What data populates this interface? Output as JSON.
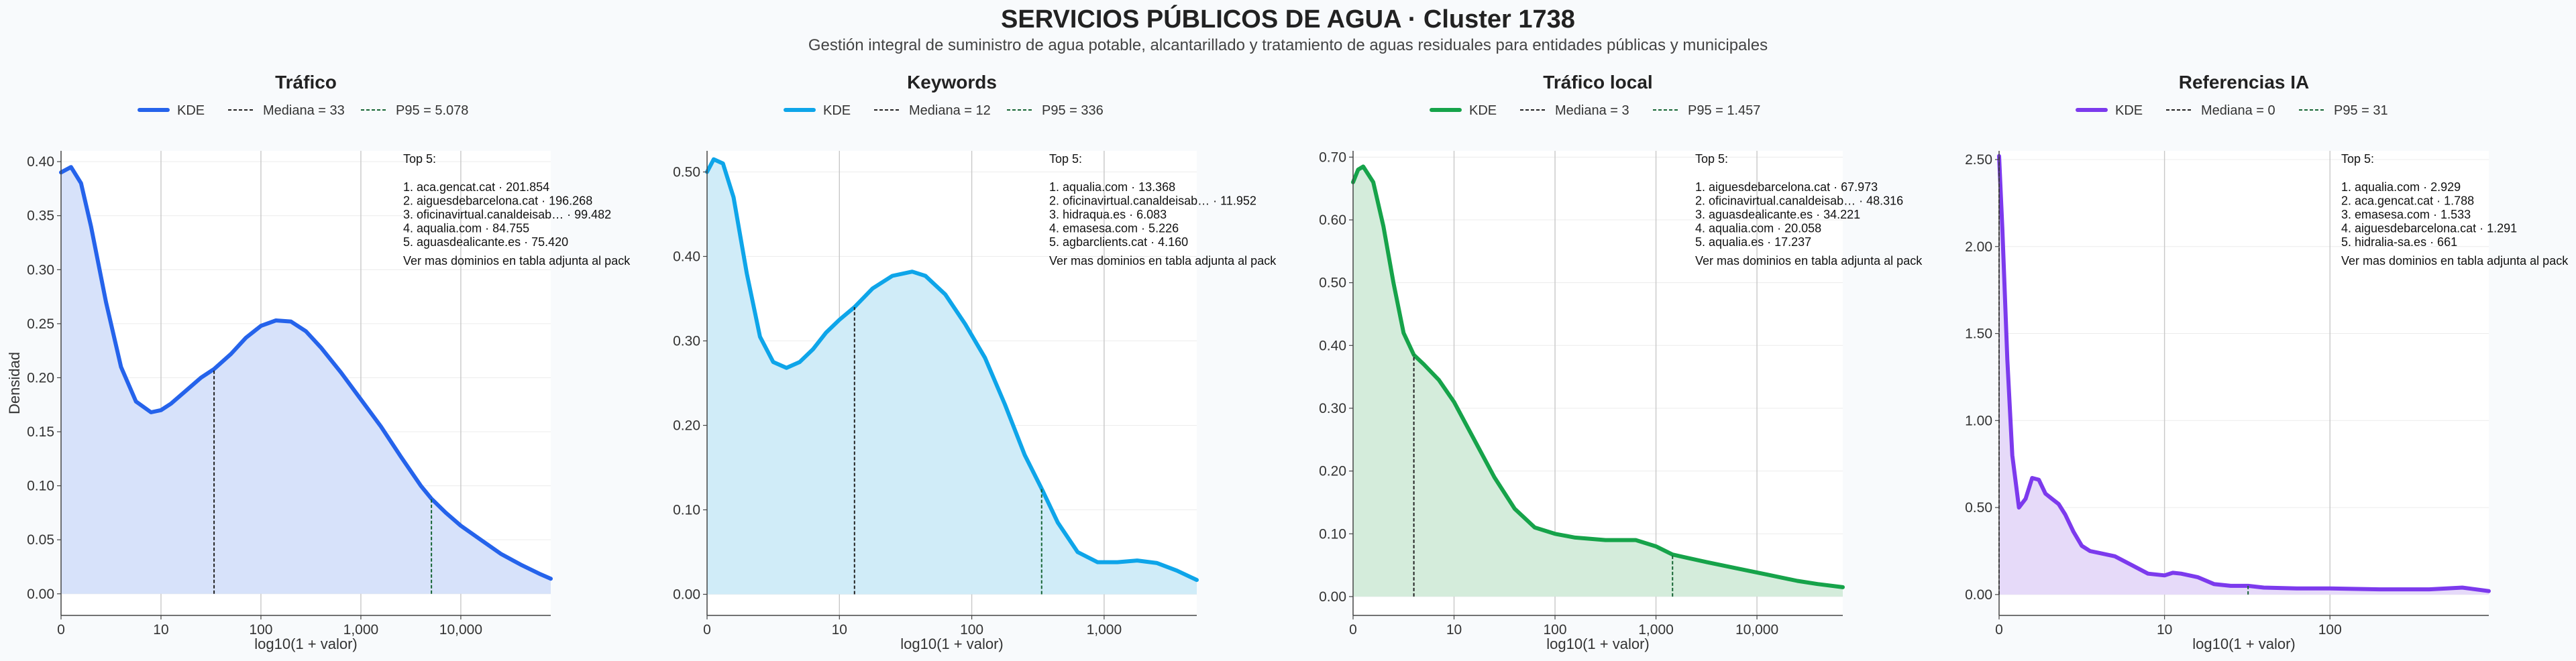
{
  "title": "SERVICIOS PÚBLICOS DE AGUA · Cluster 1738",
  "subtitle": "Gestión integral de suministro de agua potable, alcantarillado y tratamiento de aguas residuales para entidades públicas y municipales",
  "chart_data": [
    {
      "type": "area",
      "title": "Tráfico",
      "xlabel": "log10(1 + valor)",
      "ylabel": "Densidad",
      "color": "#2563eb",
      "fill": "#d7e2fa",
      "x_scale": "log10(1+value)",
      "xlim": [
        0,
        4.9
      ],
      "ylim": [
        -0.02,
        0.41
      ],
      "yticks": [
        0.0,
        0.05,
        0.1,
        0.15,
        0.2,
        0.25,
        0.3,
        0.35,
        0.4
      ],
      "xtick_values": [
        0,
        1,
        2,
        3,
        4
      ],
      "xtick_labels": [
        "0",
        "10",
        "100",
        "1,000",
        "10,000"
      ],
      "legend": {
        "kde": "KDE",
        "median": "Mediana = 33",
        "p95": "P95 = 5.078"
      },
      "median_log": 1.531,
      "p95_log": 3.706,
      "top5_title": "Top 5:",
      "top5": [
        "1. aca.gencat.cat · 201.854",
        "2. aiguesdebarcelona.cat · 196.268",
        "3. oficinavirtual.canaldeisab… · 99.482",
        "4. aqualia.com · 84.755",
        "5. aguasdealicante.es · 75.420"
      ],
      "note": "Ver mas dominios en tabla adjunta al pack",
      "kde": {
        "x": [
          0,
          0.1,
          0.2,
          0.3,
          0.45,
          0.6,
          0.75,
          0.9,
          1.0,
          1.1,
          1.25,
          1.4,
          1.531,
          1.7,
          1.85,
          2.0,
          2.15,
          2.3,
          2.45,
          2.6,
          2.8,
          3.0,
          3.2,
          3.4,
          3.6,
          3.706,
          3.85,
          4.0,
          4.2,
          4.4,
          4.6,
          4.8,
          4.9
        ],
        "y": [
          0.39,
          0.395,
          0.38,
          0.34,
          0.27,
          0.21,
          0.178,
          0.168,
          0.17,
          0.176,
          0.188,
          0.2,
          0.208,
          0.222,
          0.237,
          0.248,
          0.253,
          0.252,
          0.243,
          0.228,
          0.205,
          0.18,
          0.155,
          0.127,
          0.1,
          0.088,
          0.075,
          0.063,
          0.05,
          0.037,
          0.027,
          0.018,
          0.014
        ]
      }
    },
    {
      "type": "area",
      "title": "Keywords",
      "xlabel": "log10(1 + valor)",
      "ylabel": "",
      "color": "#0ea5e9",
      "fill": "#d0ecf8",
      "x_scale": "log10(1+value)",
      "xlim": [
        0,
        3.7
      ],
      "ylim": [
        -0.025,
        0.525
      ],
      "yticks": [
        0.0,
        0.1,
        0.2,
        0.3,
        0.4,
        0.5
      ],
      "xtick_values": [
        0,
        1,
        2,
        3
      ],
      "xtick_labels": [
        "0",
        "10",
        "100",
        "1,000"
      ],
      "legend": {
        "kde": "KDE",
        "median": "Mediana = 12",
        "p95": "P95 = 336"
      },
      "median_log": 1.114,
      "p95_log": 2.528,
      "top5_title": "Top 5:",
      "top5": [
        "1. aqualia.com · 13.368",
        "2. oficinavirtual.canaldeisab… · 11.952",
        "3. hidraqua.es · 6.083",
        "4. emasesa.com · 5.226",
        "5. agbarclients.cat · 4.160"
      ],
      "note": "Ver mas dominios en tabla adjunta al pack",
      "kde": {
        "x": [
          0,
          0.05,
          0.12,
          0.2,
          0.3,
          0.4,
          0.5,
          0.6,
          0.7,
          0.8,
          0.9,
          1.0,
          1.114,
          1.25,
          1.4,
          1.55,
          1.65,
          1.8,
          1.95,
          2.1,
          2.25,
          2.4,
          2.528,
          2.65,
          2.8,
          2.95,
          3.1,
          3.25,
          3.4,
          3.55,
          3.7
        ],
        "y": [
          0.5,
          0.515,
          0.51,
          0.47,
          0.38,
          0.305,
          0.275,
          0.268,
          0.275,
          0.29,
          0.31,
          0.325,
          0.34,
          0.362,
          0.377,
          0.382,
          0.377,
          0.355,
          0.32,
          0.28,
          0.225,
          0.165,
          0.125,
          0.085,
          0.05,
          0.038,
          0.038,
          0.04,
          0.037,
          0.028,
          0.017
        ]
      }
    },
    {
      "type": "area",
      "title": "Tráfico local",
      "xlabel": "log10(1 + valor)",
      "ylabel": "",
      "color": "#16a34a",
      "fill": "#d4ecdb",
      "x_scale": "log10(1+value)",
      "xlim": [
        0,
        4.85
      ],
      "ylim": [
        -0.03,
        0.71
      ],
      "yticks": [
        0.0,
        0.1,
        0.2,
        0.3,
        0.4,
        0.5,
        0.6,
        0.7
      ],
      "xtick_values": [
        0,
        1,
        2,
        3,
        4
      ],
      "xtick_labels": [
        "0",
        "10",
        "100",
        "1,000",
        "10,000"
      ],
      "legend": {
        "kde": "KDE",
        "median": "Mediana = 3",
        "p95": "P95 = 1.457"
      },
      "median_log": 0.602,
      "p95_log": 3.164,
      "top5_title": "Top 5:",
      "top5": [
        "1. aiguesdebarcelona.cat · 67.973",
        "2. oficinavirtual.canaldeisab… · 48.316",
        "3. aguasdealicante.es · 34.221",
        "4. aqualia.com · 20.058",
        "5. aqualia.es · 17.237"
      ],
      "note": "Ver mas dominios en tabla adjunta al pack",
      "kde": {
        "x": [
          0,
          0.05,
          0.1,
          0.2,
          0.3,
          0.4,
          0.5,
          0.602,
          0.7,
          0.85,
          1.0,
          1.2,
          1.4,
          1.6,
          1.8,
          2.0,
          2.2,
          2.5,
          2.8,
          3.0,
          3.164,
          3.3,
          3.5,
          3.8,
          4.1,
          4.4,
          4.6,
          4.85
        ],
        "y": [
          0.66,
          0.68,
          0.685,
          0.66,
          0.59,
          0.5,
          0.42,
          0.385,
          0.37,
          0.345,
          0.31,
          0.25,
          0.19,
          0.14,
          0.11,
          0.1,
          0.094,
          0.09,
          0.09,
          0.08,
          0.067,
          0.062,
          0.055,
          0.045,
          0.035,
          0.025,
          0.02,
          0.015
        ]
      }
    },
    {
      "type": "area",
      "title": "Referencias IA",
      "xlabel": "log10(1 + valor)",
      "ylabel": "",
      "color": "#7c3aed",
      "fill": "#e6daf9",
      "x_scale": "log10(1+value)",
      "xlim": [
        0,
        2.96
      ],
      "ylim": [
        -0.12,
        2.55
      ],
      "yticks": [
        0.0,
        0.5,
        1.0,
        1.5,
        2.0,
        2.5
      ],
      "xtick_values": [
        0,
        1,
        2
      ],
      "xtick_labels": [
        "0",
        "10",
        "100"
      ],
      "legend": {
        "kde": "KDE",
        "median": "Mediana = 0",
        "p95": "P95 = 31"
      },
      "median_log": 0,
      "p95_log": 1.505,
      "top5_title": "Top 5:",
      "top5": [
        "1. aqualia.com · 2.929",
        "2. aca.gencat.cat · 1.788",
        "3. emasesa.com · 1.533",
        "4. aiguesdebarcelona.cat · 1.291",
        "5. hidralia-sa.es · 661"
      ],
      "note": "Ver mas dominios en tabla adjunta al pack",
      "kde": {
        "x": [
          0,
          0.02,
          0.05,
          0.08,
          0.12,
          0.16,
          0.2,
          0.24,
          0.28,
          0.32,
          0.36,
          0.4,
          0.45,
          0.5,
          0.55,
          0.6,
          0.7,
          0.8,
          0.9,
          1.0,
          1.05,
          1.1,
          1.2,
          1.3,
          1.4,
          1.505,
          1.6,
          1.8,
          2.0,
          2.3,
          2.6,
          2.8,
          2.96
        ],
        "y": [
          2.52,
          2.1,
          1.35,
          0.8,
          0.5,
          0.55,
          0.67,
          0.66,
          0.58,
          0.55,
          0.52,
          0.46,
          0.36,
          0.28,
          0.25,
          0.24,
          0.22,
          0.17,
          0.12,
          0.11,
          0.125,
          0.12,
          0.1,
          0.06,
          0.05,
          0.05,
          0.04,
          0.035,
          0.035,
          0.03,
          0.03,
          0.04,
          0.02
        ]
      }
    }
  ]
}
